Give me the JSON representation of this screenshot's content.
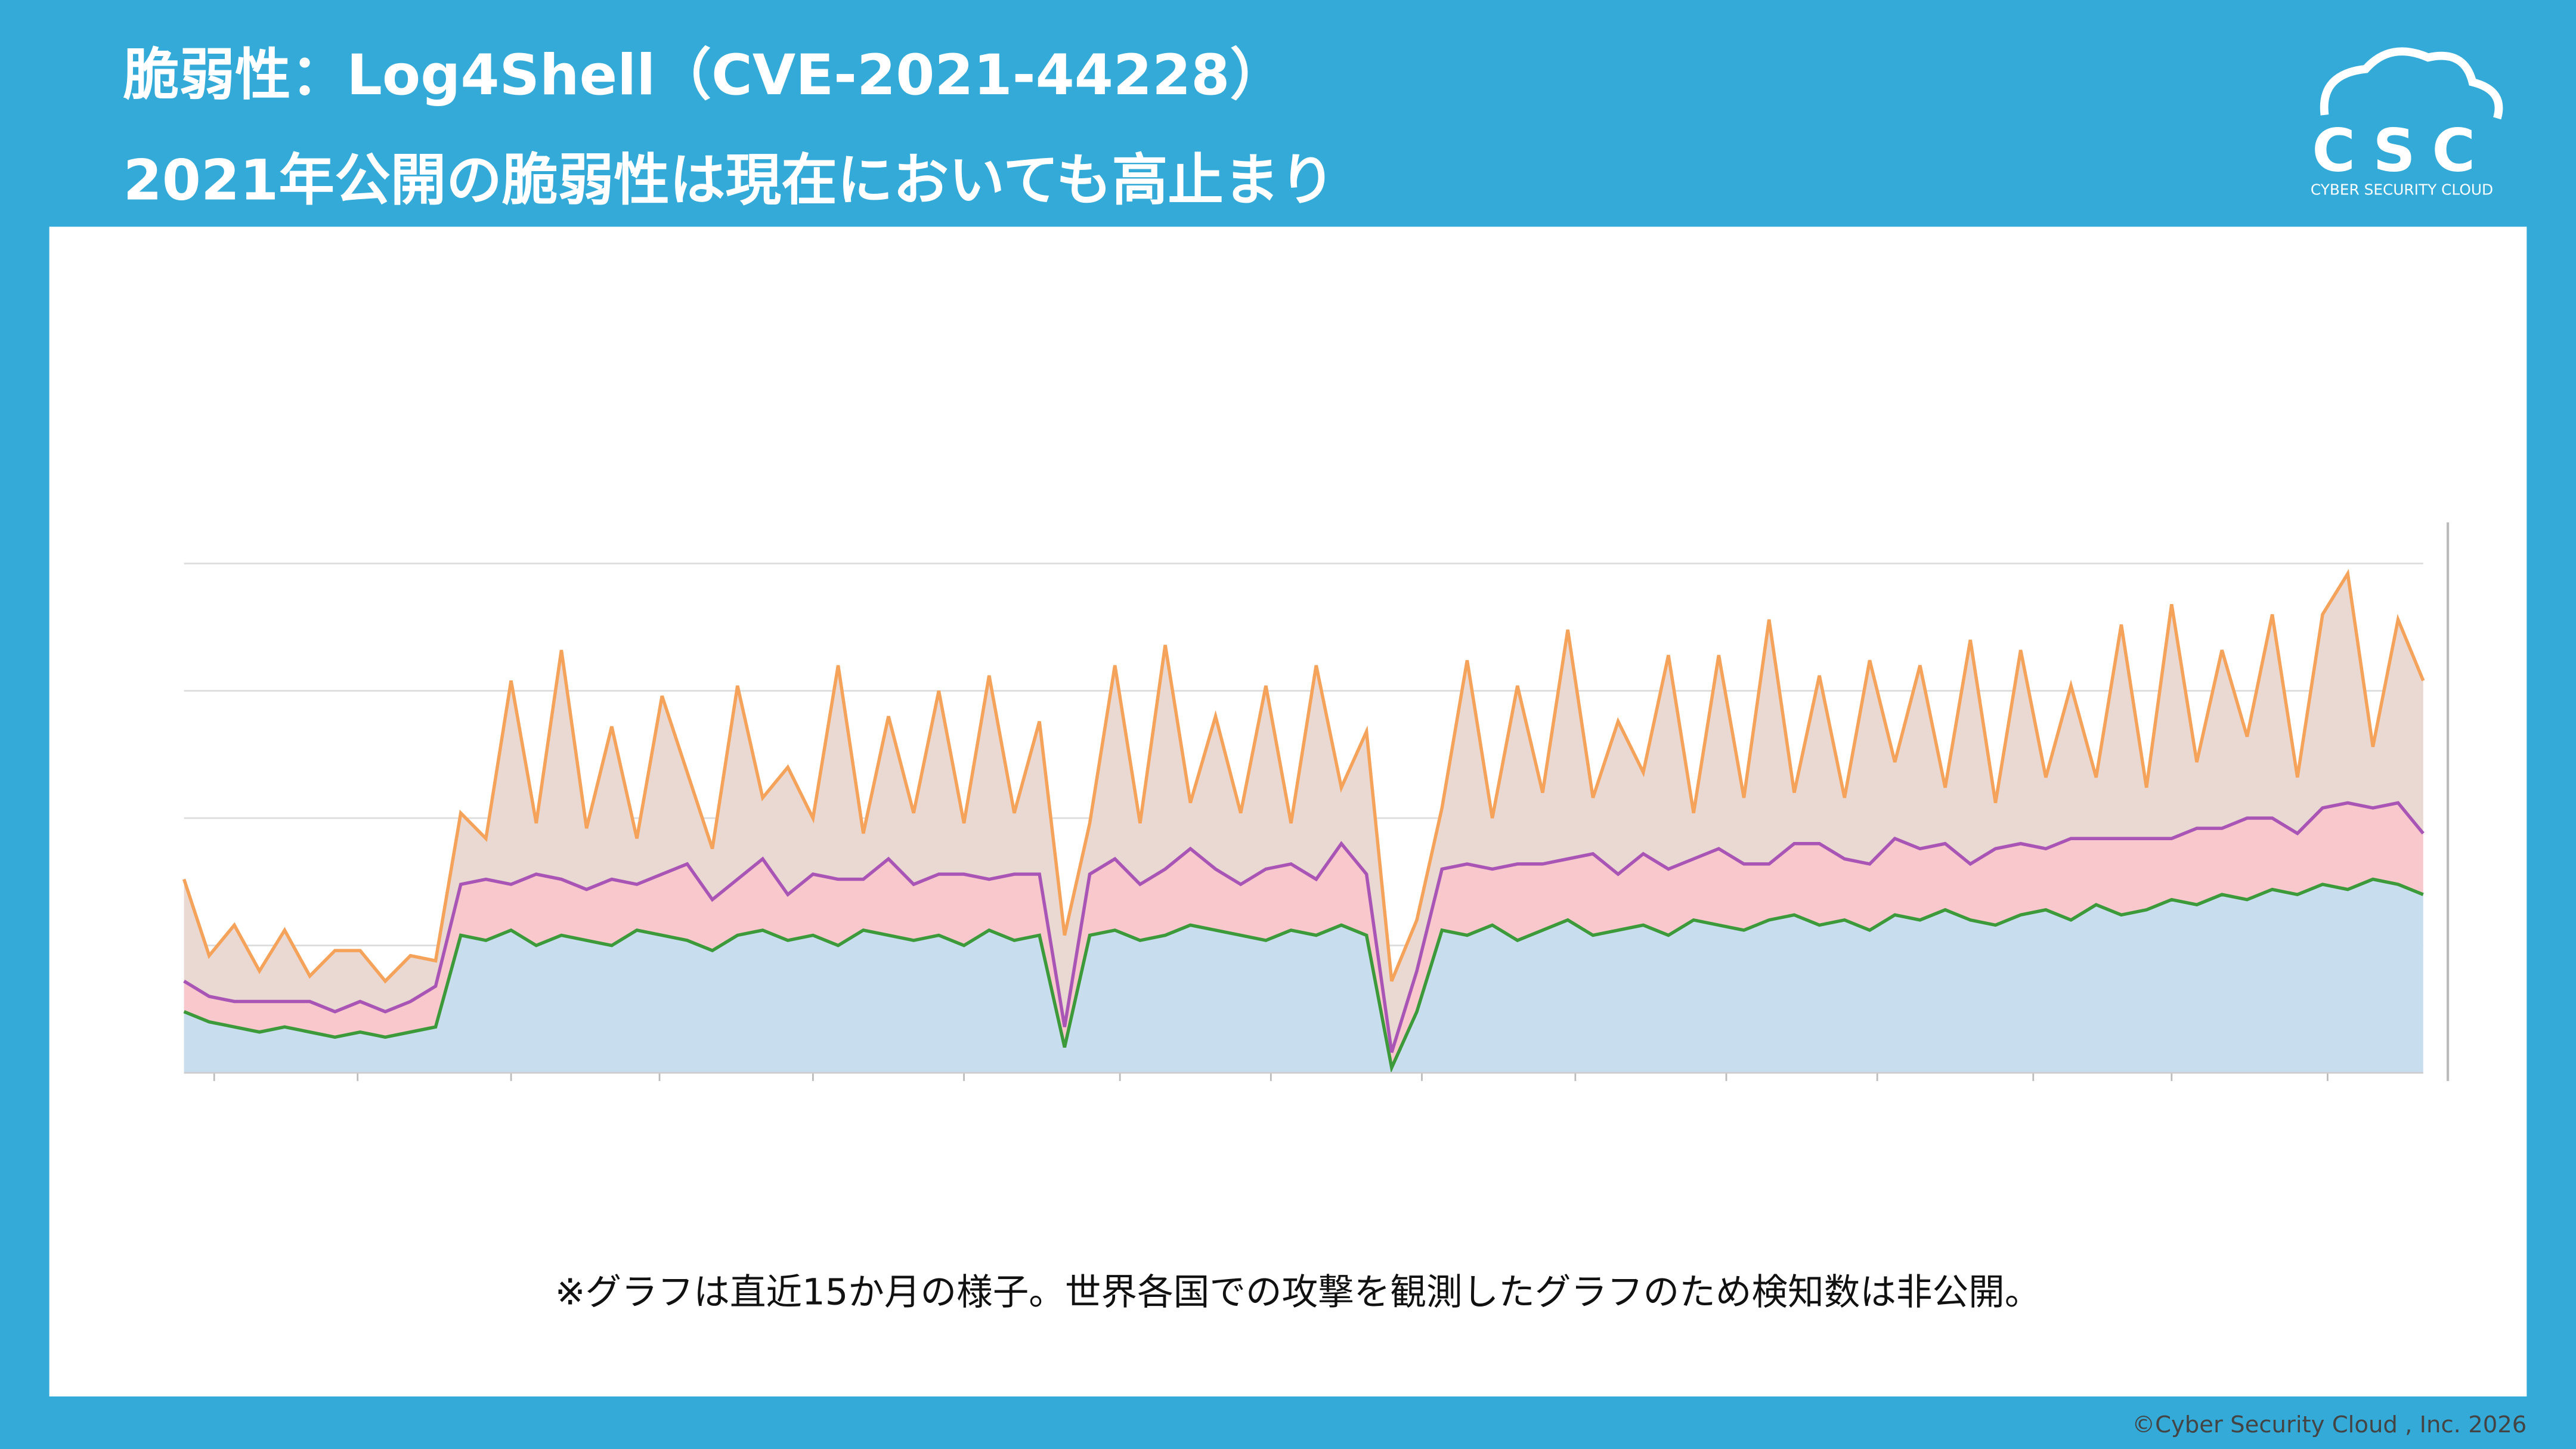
{
  "header": {
    "title_line1": "脆弱性：Log4Shell（CVE-2021-44228）",
    "title_line2": "2021年公開の脆弱性は現在においても高止まり",
    "logo": "CSC",
    "logo_caption": "CYBER SECURITY CLOUD"
  },
  "chart_data": {
    "type": "stacked-area",
    "xlim": [
      0,
      89
    ],
    "xticks": [
      1.2,
      6.9,
      13,
      18.9,
      25,
      31,
      37.2,
      43.2,
      49.2,
      55.3,
      61.3,
      67.3,
      73.5,
      79,
      85.2
    ],
    "ylim": [
      0,
      100
    ],
    "yticks": [
      0,
      25,
      50,
      75,
      100
    ],
    "grid": true,
    "series": [
      {
        "color": "#3d9a3a",
        "values": [
          12,
          10,
          9,
          8,
          9,
          8,
          7,
          8,
          7,
          8,
          9,
          27,
          26,
          28,
          25,
          27,
          26,
          25,
          28,
          27,
          26,
          24,
          27,
          28,
          26,
          27,
          25,
          28,
          27,
          26,
          27,
          25,
          28,
          26,
          27,
          5,
          27,
          28,
          26,
          27,
          29,
          28,
          27,
          26,
          28,
          27,
          29,
          27,
          1,
          12,
          28,
          27,
          29,
          26,
          28,
          30,
          27,
          28,
          29,
          27,
          30,
          29,
          28,
          30,
          31,
          29,
          30,
          28,
          31,
          30,
          32,
          30,
          29,
          31,
          32,
          30,
          33,
          31,
          32,
          34,
          33,
          35,
          34,
          36,
          35,
          37,
          36,
          38,
          37,
          35
        ]
      },
      {
        "color": "#a855b5",
        "values": [
          6,
          5,
          5,
          6,
          5,
          6,
          5,
          6,
          5,
          6,
          8,
          10,
          12,
          9,
          14,
          11,
          10,
          13,
          9,
          12,
          15,
          10,
          11,
          14,
          9,
          12,
          13,
          10,
          15,
          11,
          12,
          14,
          10,
          13,
          12,
          4,
          12,
          14,
          11,
          13,
          15,
          12,
          10,
          14,
          13,
          11,
          16,
          12,
          3,
          8,
          12,
          14,
          11,
          15,
          13,
          12,
          16,
          11,
          14,
          13,
          12,
          15,
          13,
          11,
          14,
          16,
          12,
          13,
          15,
          14,
          13,
          11,
          15,
          14,
          12,
          16,
          13,
          15,
          14,
          12,
          15,
          13,
          16,
          14,
          12,
          15,
          17,
          14,
          16,
          12
        ]
      },
      {
        "color": "#f5a25a",
        "values": [
          20,
          8,
          15,
          6,
          14,
          5,
          12,
          10,
          6,
          9,
          5,
          14,
          8,
          40,
          10,
          45,
          12,
          30,
          9,
          35,
          18,
          10,
          38,
          12,
          25,
          11,
          42,
          9,
          28,
          14,
          36,
          10,
          40,
          12,
          30,
          18,
          10,
          38,
          12,
          44,
          9,
          30,
          14,
          36,
          8,
          42,
          11,
          28,
          14,
          10,
          12,
          40,
          10,
          35,
          14,
          45,
          11,
          30,
          16,
          42,
          9,
          38,
          13,
          48,
          10,
          33,
          12,
          40,
          15,
          36,
          11,
          44,
          9,
          38,
          14,
          30,
          12,
          42,
          10,
          46,
          13,
          35,
          16,
          40,
          11,
          38,
          45,
          12,
          36,
          30
        ]
      }
    ]
  },
  "footnote": "※グラフは直近15か月の様子。世界各国での攻撃を観測したグラフのため検知数は非公開。",
  "copyright": "©Cyber Security Cloud , Inc. 2026"
}
